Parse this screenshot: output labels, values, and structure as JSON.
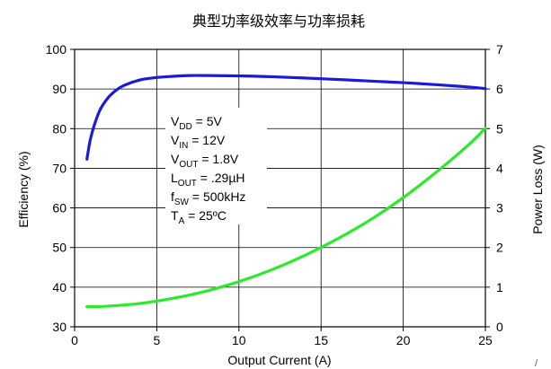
{
  "chart_data": {
    "type": "line",
    "title": "典型功率级效率与功率损耗",
    "xlabel": "Output Current (A)",
    "ylabel_left": "Efficiency (%)",
    "ylabel_right": "Power Loss (W)",
    "xlim": [
      0,
      25
    ],
    "ylim_left": [
      30,
      100
    ],
    "ylim_right": [
      0,
      7
    ],
    "x_ticks": [
      0,
      5,
      10,
      15,
      20,
      25
    ],
    "y_left_ticks": [
      30,
      40,
      50,
      60,
      70,
      80,
      90,
      100
    ],
    "y_right_ticks": [
      0,
      1,
      2,
      3,
      4,
      5,
      6,
      7
    ],
    "grid": true,
    "series": [
      {
        "axis": "left",
        "color": "#1a1adc",
        "x": [
          0.75,
          1.0,
          1.5,
          2.0,
          2.5,
          3.0,
          4.0,
          5.0,
          6.0,
          7.0,
          8.0,
          10.0,
          12.0,
          15.0,
          18.0,
          20.0,
          22.0,
          24.0,
          25.0
        ],
        "y": [
          72.3,
          78.0,
          84.3,
          87.6,
          89.6,
          90.9,
          92.3,
          92.9,
          93.2,
          93.4,
          93.4,
          93.3,
          93.1,
          92.6,
          92.0,
          91.6,
          91.1,
          90.5,
          90.1
        ]
      },
      {
        "axis": "right",
        "color": "#2aeb2a",
        "x": [
          0.75,
          2.0,
          4.0,
          6.0,
          8.0,
          10.0,
          12.0,
          14.0,
          16.0,
          18.0,
          20.0,
          22.0,
          24.0,
          25.0
        ],
        "y": [
          0.51,
          0.52,
          0.59,
          0.72,
          0.9,
          1.14,
          1.44,
          1.8,
          2.22,
          2.7,
          3.26,
          3.9,
          4.6,
          5.01
        ]
      }
    ],
    "annotations": {
      "vdd": {
        "main": "V",
        "sub": "DD",
        "rest": " = 5V"
      },
      "vin": {
        "main": "V",
        "sub": "IN",
        "rest": " = 12V"
      },
      "vout": {
        "main": "V",
        "sub": "OUT",
        "rest": " = 1.8V"
      },
      "lout": {
        "main": "L",
        "sub": "OUT",
        "rest": " = .29µH"
      },
      "fsw": {
        "main": "f",
        "sub": "SW",
        "rest": " = 500kHz"
      },
      "ta": {
        "main": "T",
        "sub": "A",
        "rest": " = 25ºC"
      }
    }
  },
  "corner_mark": "/"
}
